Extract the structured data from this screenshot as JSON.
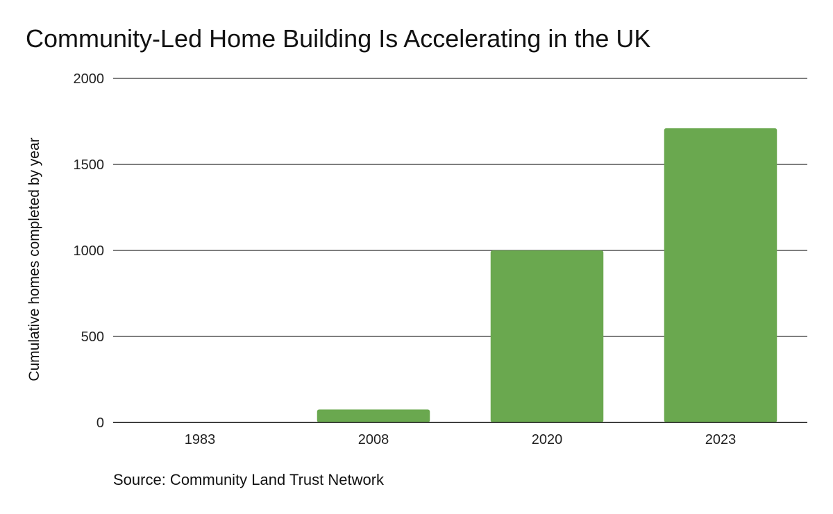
{
  "title": "Community-Led Home Building Is Accelerating in the UK",
  "source": "Source: Community Land Trust Network",
  "chart_data": {
    "type": "bar",
    "title": "Community-Led Home Building Is Accelerating in the UK",
    "xlabel": "",
    "ylabel": "Cumulative homes completed by year",
    "categories": [
      "1983",
      "2008",
      "2020",
      "2023"
    ],
    "values": [
      0,
      75,
      1000,
      1710
    ],
    "ylim": [
      0,
      2000
    ],
    "yticks": [
      0,
      500,
      1000,
      1500,
      2000
    ],
    "grid": true,
    "legend": "none",
    "bar_color": "#6aa84f",
    "gridline_color": "#333333"
  }
}
